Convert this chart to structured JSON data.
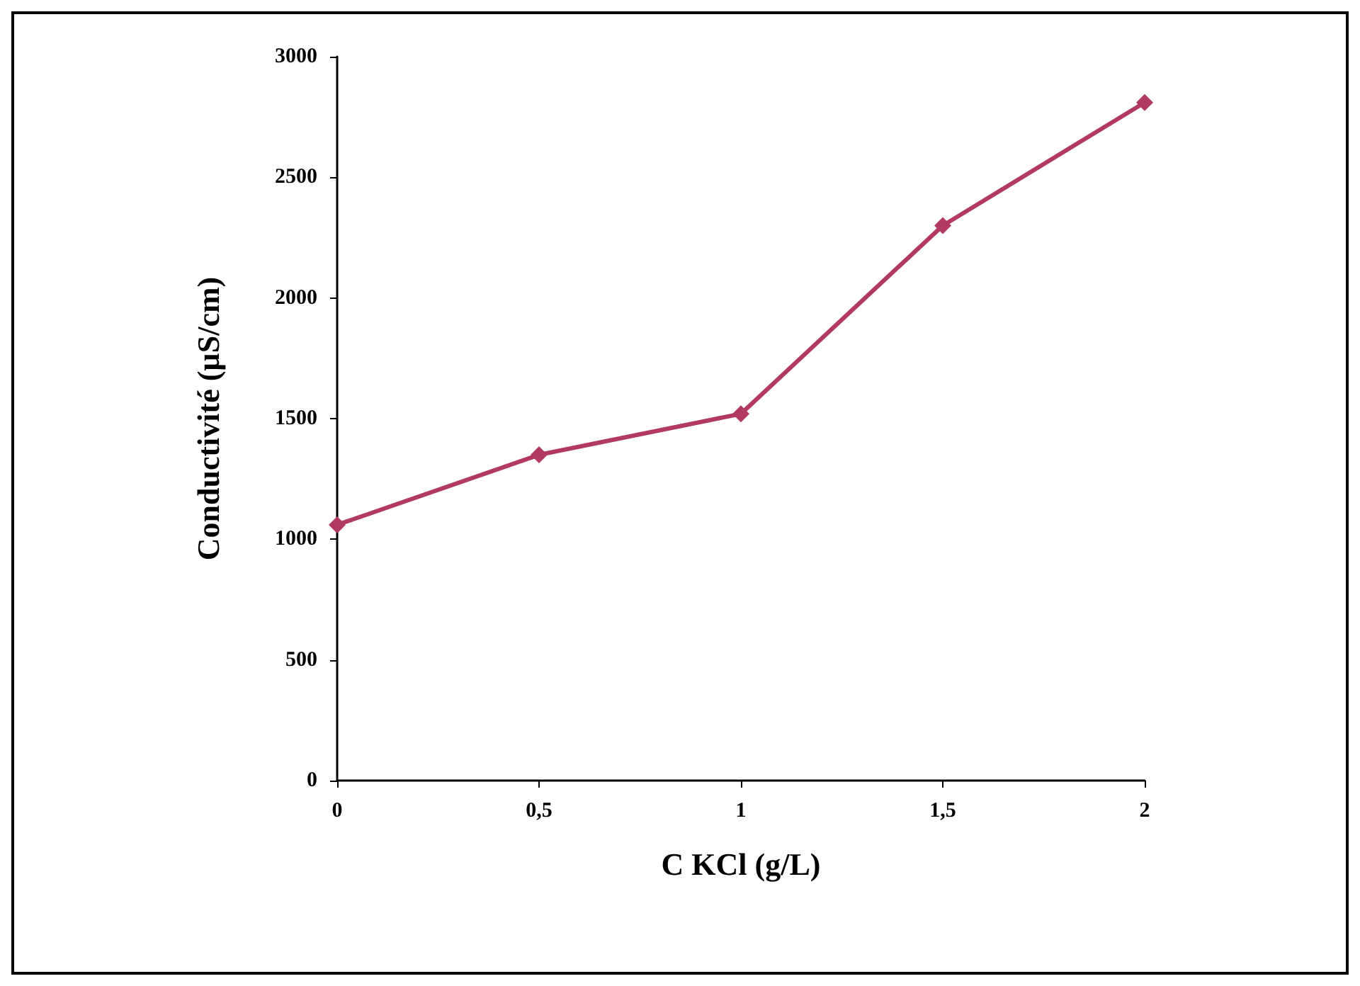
{
  "chart_data": {
    "type": "line",
    "xlabel": "C KCl (g/L)",
    "ylabel": "Conductivité (µS/cm)",
    "x": [
      0,
      0.5,
      1,
      1.5,
      2
    ],
    "series": [
      {
        "color": "#b2395f",
        "values": [
          1060,
          1350,
          1520,
          2300,
          2810
        ]
      }
    ],
    "xlim": [
      0,
      2
    ],
    "xticks": [
      {
        "value": 0,
        "label": "0"
      },
      {
        "value": 0.5,
        "label": "0,5"
      },
      {
        "value": 1,
        "label": "1"
      },
      {
        "value": 1.5,
        "label": "1,5"
      },
      {
        "value": 2,
        "label": "2"
      }
    ],
    "ylim": [
      0,
      3000
    ],
    "yticks": [
      0,
      500,
      1000,
      1500,
      2000,
      2500,
      3000
    ],
    "grid": false,
    "marker": "diamond",
    "line_style": "solid"
  }
}
